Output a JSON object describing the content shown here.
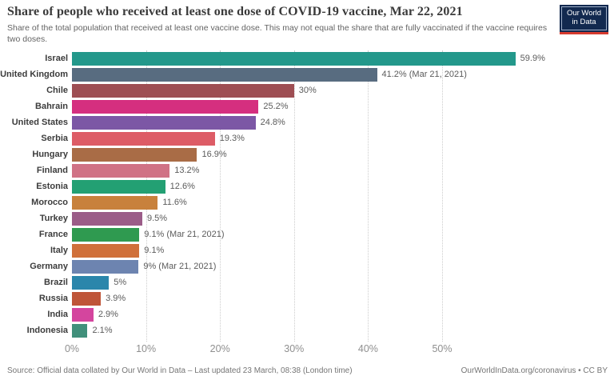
{
  "header": {
    "title": "Share of people who received at least one dose of COVID-19 vaccine, Mar 22, 2021",
    "subtitle": "Share of the total population that received at least one vaccine dose. This may not equal the share that are fully vaccinated if the vaccine requires two doses.",
    "logo_line1": "Our World",
    "logo_line2": "in Data",
    "logo_bg_color": "#12294f",
    "logo_stripe_color": "#d63b2f"
  },
  "chart_data": {
    "type": "bar",
    "orientation": "horizontal",
    "title": "Share of people who received at least one dose of COVID-19 vaccine, Mar 22, 2021",
    "categories": [
      "Israel",
      "United Kingdom",
      "Chile",
      "Bahrain",
      "United States",
      "Serbia",
      "Hungary",
      "Finland",
      "Estonia",
      "Morocco",
      "Turkey",
      "France",
      "Italy",
      "Germany",
      "Brazil",
      "Russia",
      "India",
      "Indonesia"
    ],
    "values": [
      59.9,
      41.2,
      30,
      25.2,
      24.8,
      19.3,
      16.9,
      13.2,
      12.6,
      11.6,
      9.5,
      9.1,
      9.1,
      9,
      5,
      3.9,
      2.9,
      2.1
    ],
    "value_labels": [
      "59.9%",
      "41.2% (Mar 21, 2021)",
      "30%",
      "25.2%",
      "24.8%",
      "19.3%",
      "16.9%",
      "13.2%",
      "12.6%",
      "11.6%",
      "9.5%",
      "9.1% (Mar 21, 2021)",
      "9.1%",
      "9% (Mar 21, 2021)",
      "5%",
      "3.9%",
      "2.9%",
      "2.1%"
    ],
    "bar_colors": [
      "#23988b",
      "#586c80",
      "#9e4e53",
      "#d52f7f",
      "#7c57a5",
      "#dd5c66",
      "#a96c46",
      "#d07285",
      "#23a073",
      "#c8813c",
      "#9b5c88",
      "#2f9a50",
      "#d0703a",
      "#6d84b0",
      "#2b86ab",
      "#bf5538",
      "#d4459e",
      "#41907b"
    ],
    "x_ticks": [
      {
        "value": 0,
        "label": "0%"
      },
      {
        "value": 10,
        "label": "10%"
      },
      {
        "value": 20,
        "label": "20%"
      },
      {
        "value": 30,
        "label": "30%"
      },
      {
        "value": 40,
        "label": "40%"
      },
      {
        "value": 50,
        "label": "50%"
      }
    ],
    "xlim": [
      0,
      65
    ],
    "xlabel": "",
    "ylabel": "",
    "grid": "dotted-vertical",
    "legend": "none"
  },
  "footer": {
    "source": "Source: Official data collated by Our World in Data – Last updated 23 March, 08:38 (London time)",
    "license": "OurWorldInData.org/coronavirus • CC BY"
  }
}
